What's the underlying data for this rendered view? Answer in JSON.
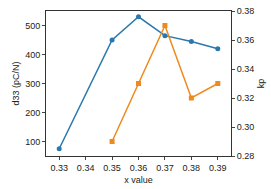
{
  "chart_data": {
    "type": "line",
    "x_label": "x value",
    "y_label": "d33 (pC/N)",
    "y2_label": "kp",
    "x": [
      0.33,
      0.35,
      0.36,
      0.37,
      0.38,
      0.39
    ],
    "series": [
      {
        "color": "#2a78ac",
        "marker": "circle",
        "values": [
          75,
          450,
          530,
          465,
          445,
          420
        ]
      },
      {
        "color": "#f0891c",
        "marker": "square",
        "axis": "y2",
        "values": [
          null,
          0.29,
          0.33,
          0.37,
          0.32,
          0.33
        ]
      }
    ],
    "xlim": [
      0.325,
      0.395
    ],
    "xticks": [
      0.33,
      0.34,
      0.35,
      0.36,
      0.37,
      0.38,
      0.39
    ],
    "ylim": [
      50,
      550
    ],
    "yticks": [
      100,
      200,
      300,
      400,
      500
    ],
    "y2lim": [
      0.28,
      0.38
    ],
    "y2ticks": [
      {
        "value": 0.28,
        "label": "0.28"
      },
      {
        "value": 0.3,
        "label": "0.30"
      },
      {
        "value": 0.32,
        "label": "0.32"
      },
      {
        "value": 0.34,
        "label": "0.34"
      },
      {
        "value": 0.36,
        "label": "0.36"
      },
      {
        "value": 0.38,
        "label": "0.38"
      }
    ],
    "grid": false
  }
}
